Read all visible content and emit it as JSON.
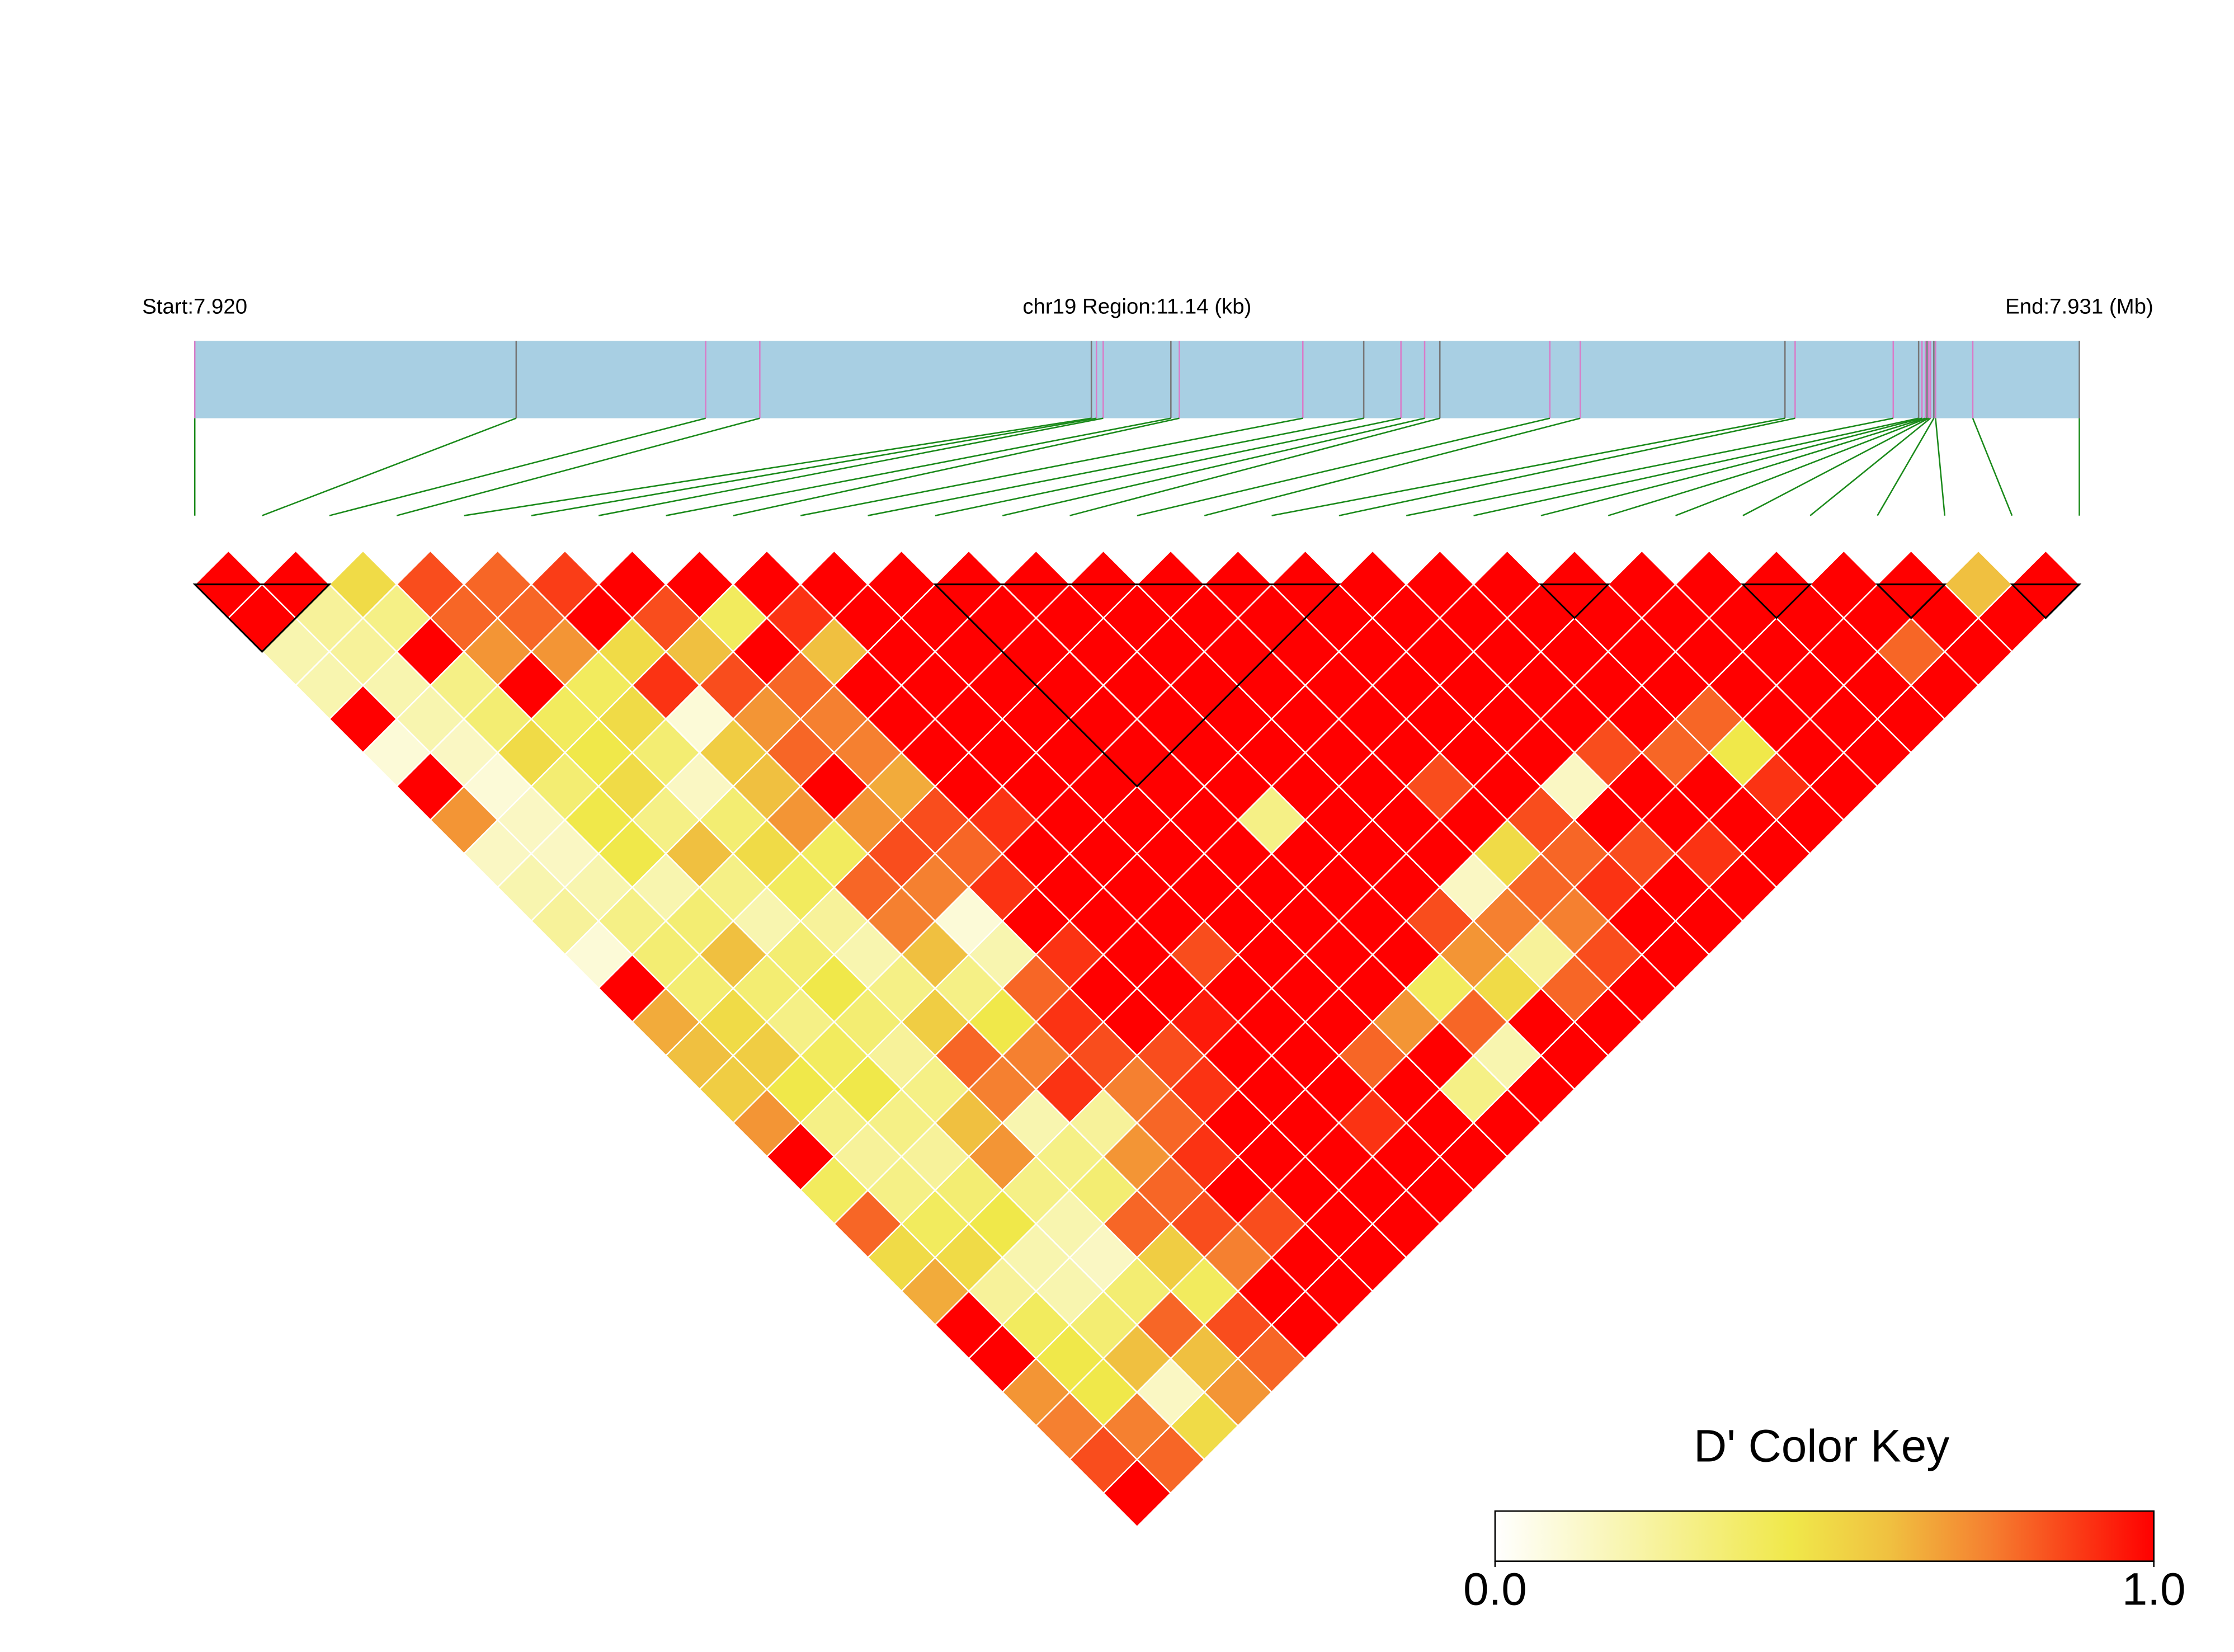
{
  "chart_data": {
    "type": "ld_heatmap",
    "track_labels": {
      "start": "Start:7.920",
      "region": "chr19 Region:11.14 (kb)",
      "end": "End:7.931 (Mb)"
    },
    "track_xlim": [
      0,
      11.14
    ],
    "track_color": "#a8cfe3",
    "snp_offsets_kb": [
      0,
      1.9,
      3.02,
      3.34,
      5.3,
      5.33,
      5.37,
      5.77,
      5.82,
      6.55,
      6.91,
      7.13,
      7.27,
      7.36,
      8.01,
      8.19,
      9.4,
      9.46,
      10.04,
      10.19,
      10.21,
      10.23,
      10.24,
      10.25,
      10.26,
      10.28,
      10.29,
      10.51,
      11.14
    ],
    "matrix": [
      [
        1,
        1,
        0.2,
        0.2,
        1,
        0.1,
        1,
        0.7,
        0.15,
        0.2,
        0.25,
        0.1,
        1,
        0.65,
        0.6,
        0.55,
        0.7,
        1,
        0.4,
        0.8,
        0.5,
        0.65,
        1,
        1,
        0.7,
        0.75,
        0.85,
        1
      ],
      [
        1,
        0.25,
        0.25,
        0.2,
        0.2,
        0.15,
        0.1,
        0.15,
        0.15,
        0.2,
        0.3,
        0.35,
        0.35,
        0.5,
        0.55,
        0.45,
        0.3,
        0.25,
        0.3,
        0.4,
        0.5,
        0.25,
        0.4,
        0.45,
        0.45,
        0.75,
        0.8
      ],
      [
        0.5,
        0.3,
        1,
        0.3,
        0.35,
        0.5,
        0.35,
        0.45,
        0.45,
        0.2,
        0.35,
        0.6,
        0.35,
        0.3,
        0.4,
        0.45,
        0.3,
        0.25,
        0.35,
        0.45,
        0.2,
        0.2,
        0.35,
        0.6,
        0.15,
        0.5
      ],
      [
        0.85,
        0.8,
        0.7,
        1,
        0.4,
        0.45,
        0.5,
        0.3,
        0.6,
        0.3,
        0.2,
        0.35,
        0.45,
        0.35,
        0.25,
        0.3,
        0.6,
        0.7,
        0.3,
        0.2,
        0.15,
        0.35,
        0.8,
        0.6,
        0.7
      ],
      [
        0.8,
        0.8,
        0.7,
        0.4,
        0.5,
        0.35,
        0.15,
        0.35,
        0.5,
        0.4,
        0.25,
        0.2,
        0.3,
        0.55,
        0.8,
        0.75,
        0.2,
        0.3,
        0.35,
        0.8,
        0.55,
        0.4,
        0.85,
        0.8
      ],
      [
        0.88,
        1,
        0.5,
        0.9,
        0.1,
        0.55,
        0.6,
        0.7,
        0.4,
        0.8,
        0.75,
        0.6,
        0.3,
        0.45,
        0.75,
        0.9,
        0.25,
        0.7,
        0.8,
        0.85,
        0.75,
        1,
        1
      ],
      [
        1,
        0.85,
        0.6,
        0.85,
        0.7,
        0.8,
        1,
        0.7,
        0.85,
        0.75,
        0.1,
        0.2,
        0.8,
        0.9,
        0.85,
        0.75,
        0.8,
        0.9,
        1,
        0.85,
        1,
        1
      ],
      [
        1,
        0.4,
        1,
        0.8,
        0.75,
        0.75,
        0.65,
        0.85,
        0.8,
        0.9,
        1,
        0.9,
        1,
        1,
        0.85,
        0.9,
        1,
        1,
        1,
        1,
        1
      ],
      [
        1,
        0.9,
        0.6,
        1,
        1,
        1,
        1,
        0.9,
        1,
        1,
        1,
        1,
        1,
        0.95,
        1,
        1,
        1,
        1,
        1,
        1
      ],
      [
        1,
        1,
        1,
        1,
        1,
        1,
        1,
        1,
        1,
        1,
        1,
        0.85,
        1,
        1,
        1,
        1,
        0.9,
        1,
        1
      ],
      [
        1,
        1,
        1,
        1,
        1,
        1,
        1,
        1,
        1,
        1,
        1,
        1,
        1,
        1,
        0.8,
        1,
        1,
        1
      ],
      [
        1,
        1,
        1,
        1,
        1,
        1,
        1,
        1,
        1,
        1,
        1,
        1,
        1,
        0.7,
        1,
        0.3,
        1
      ],
      [
        1,
        1,
        1,
        1,
        1,
        1,
        1,
        0.3,
        1,
        1,
        1,
        1,
        0.4,
        0.8,
        0.2,
        1
      ],
      [
        1,
        1,
        1,
        1,
        1,
        1,
        1,
        1,
        1,
        1,
        0.85,
        0.7,
        0.5,
        1,
        1
      ],
      [
        1,
        1,
        1,
        1,
        1,
        1,
        1,
        1,
        1,
        0.15,
        0.75,
        0.25,
        0.8,
        1
      ],
      [
        1,
        1,
        1,
        1,
        1,
        1,
        0.85,
        1,
        0.5,
        0.8,
        0.75,
        0.85,
        1
      ],
      [
        1,
        1,
        1,
        1,
        1,
        1,
        1,
        0.85,
        0.8,
        0.9,
        1,
        1
      ],
      [
        1,
        1,
        1,
        1,
        1,
        1,
        0.15,
        1,
        0.85,
        1,
        1
      ],
      [
        1,
        1,
        1,
        1,
        1,
        0.85,
        1,
        1,
        0.9,
        1
      ],
      [
        1,
        1,
        1,
        1,
        1,
        0.8,
        1,
        1,
        1
      ],
      [
        1,
        1,
        1,
        1,
        0.8,
        0.45,
        0.9,
        1
      ],
      [
        1,
        1,
        1,
        1,
        1,
        1,
        1
      ],
      [
        1,
        1,
        1,
        1,
        1,
        1
      ],
      [
        1,
        1,
        1,
        1,
        1
      ],
      [
        1,
        1,
        0.8,
        1
      ],
      [
        1,
        1,
        1
      ],
      [
        0.6,
        1
      ],
      [
        1
      ]
    ],
    "blocks": [
      [
        0,
        2
      ],
      [
        11,
        17
      ],
      [
        20,
        21
      ],
      [
        23,
        24
      ],
      [
        25,
        26
      ],
      [
        27,
        28
      ]
    ],
    "colorscale": [
      [
        0,
        "#ffffff"
      ],
      [
        0.45,
        "#f0e84a"
      ],
      [
        0.6,
        "#f0c040"
      ],
      [
        0.75,
        "#f58030"
      ],
      [
        1,
        "#ff0000"
      ]
    ],
    "color_key": {
      "title": "D' Color Key",
      "ticks": [
        {
          "value": 0,
          "label": "0.0"
        },
        {
          "value": 1,
          "label": "1.0"
        }
      ]
    }
  }
}
